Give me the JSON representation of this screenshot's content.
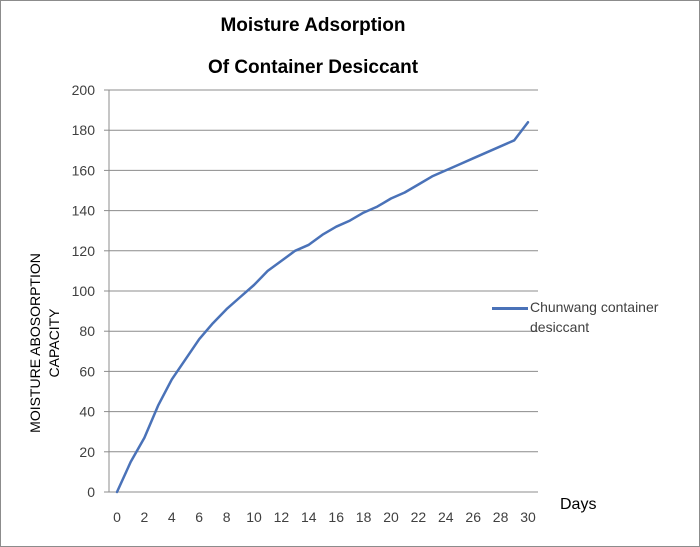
{
  "chart_data": {
    "type": "line",
    "title_lines": [
      "Moisture Adsorption",
      "Of Container Desiccant"
    ],
    "xlabel": "Days",
    "ylabel_lines": [
      "MOISTURE ABOSORPTION",
      "CAPACITY"
    ],
    "xlim": [
      0,
      30
    ],
    "ylim": [
      0,
      200
    ],
    "x_ticks": [
      0,
      2,
      4,
      6,
      8,
      10,
      12,
      14,
      16,
      18,
      20,
      22,
      24,
      26,
      28,
      30
    ],
    "y_ticks": [
      0,
      20,
      40,
      60,
      80,
      100,
      120,
      140,
      160,
      180,
      200
    ],
    "grid": "horizontal",
    "legend_position": "right",
    "x": [
      0,
      1,
      2,
      3,
      4,
      5,
      6,
      7,
      8,
      9,
      10,
      11,
      12,
      13,
      14,
      15,
      16,
      17,
      18,
      19,
      20,
      21,
      22,
      23,
      24,
      25,
      26,
      27,
      28,
      29,
      30
    ],
    "series": [
      {
        "name": "Chunwang container desiccant",
        "color": "#4a72b8",
        "values": [
          0,
          15,
          27,
          43,
          56,
          66,
          76,
          84,
          91,
          97,
          103,
          110,
          115,
          120,
          123,
          128,
          132,
          135,
          139,
          142,
          146,
          149,
          153,
          157,
          160,
          163,
          166,
          169,
          172,
          175,
          184
        ]
      }
    ]
  }
}
